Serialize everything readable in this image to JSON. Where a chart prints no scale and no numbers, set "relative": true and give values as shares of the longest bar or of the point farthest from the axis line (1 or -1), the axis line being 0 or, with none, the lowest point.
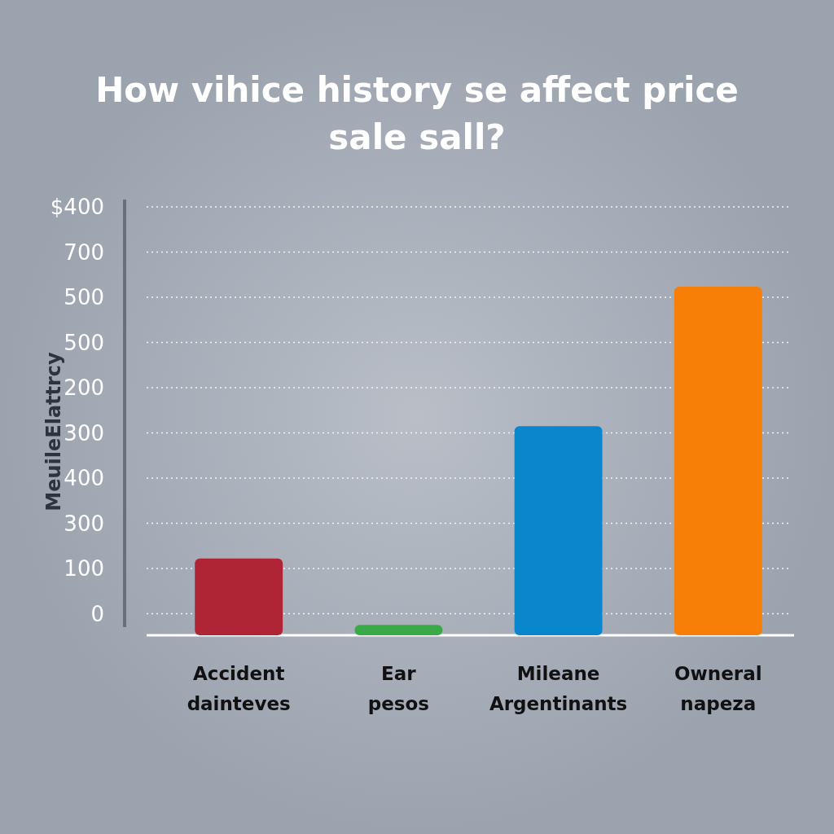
{
  "chart_data": {
    "type": "bar",
    "title": "How vihice history se affect price\nsale sall?",
    "ylabel": "MeuileElattrcy",
    "categories": [
      "Accident\ndainteves",
      "Ear\npesos",
      "Mileane\nArgentinants",
      "Owneral\nnapeza"
    ],
    "values": [
      0.22,
      0.03,
      0.6,
      1
    ],
    "colors": [
      "#b02535",
      "#3aaa48",
      "#0a86cc",
      "#f77f08"
    ],
    "relative": true,
    "annotations": [
      "$400",
      "700",
      "500",
      "500",
      "200",
      "300",
      "400",
      "300",
      "100",
      "0"
    ],
    "grid": true
  }
}
